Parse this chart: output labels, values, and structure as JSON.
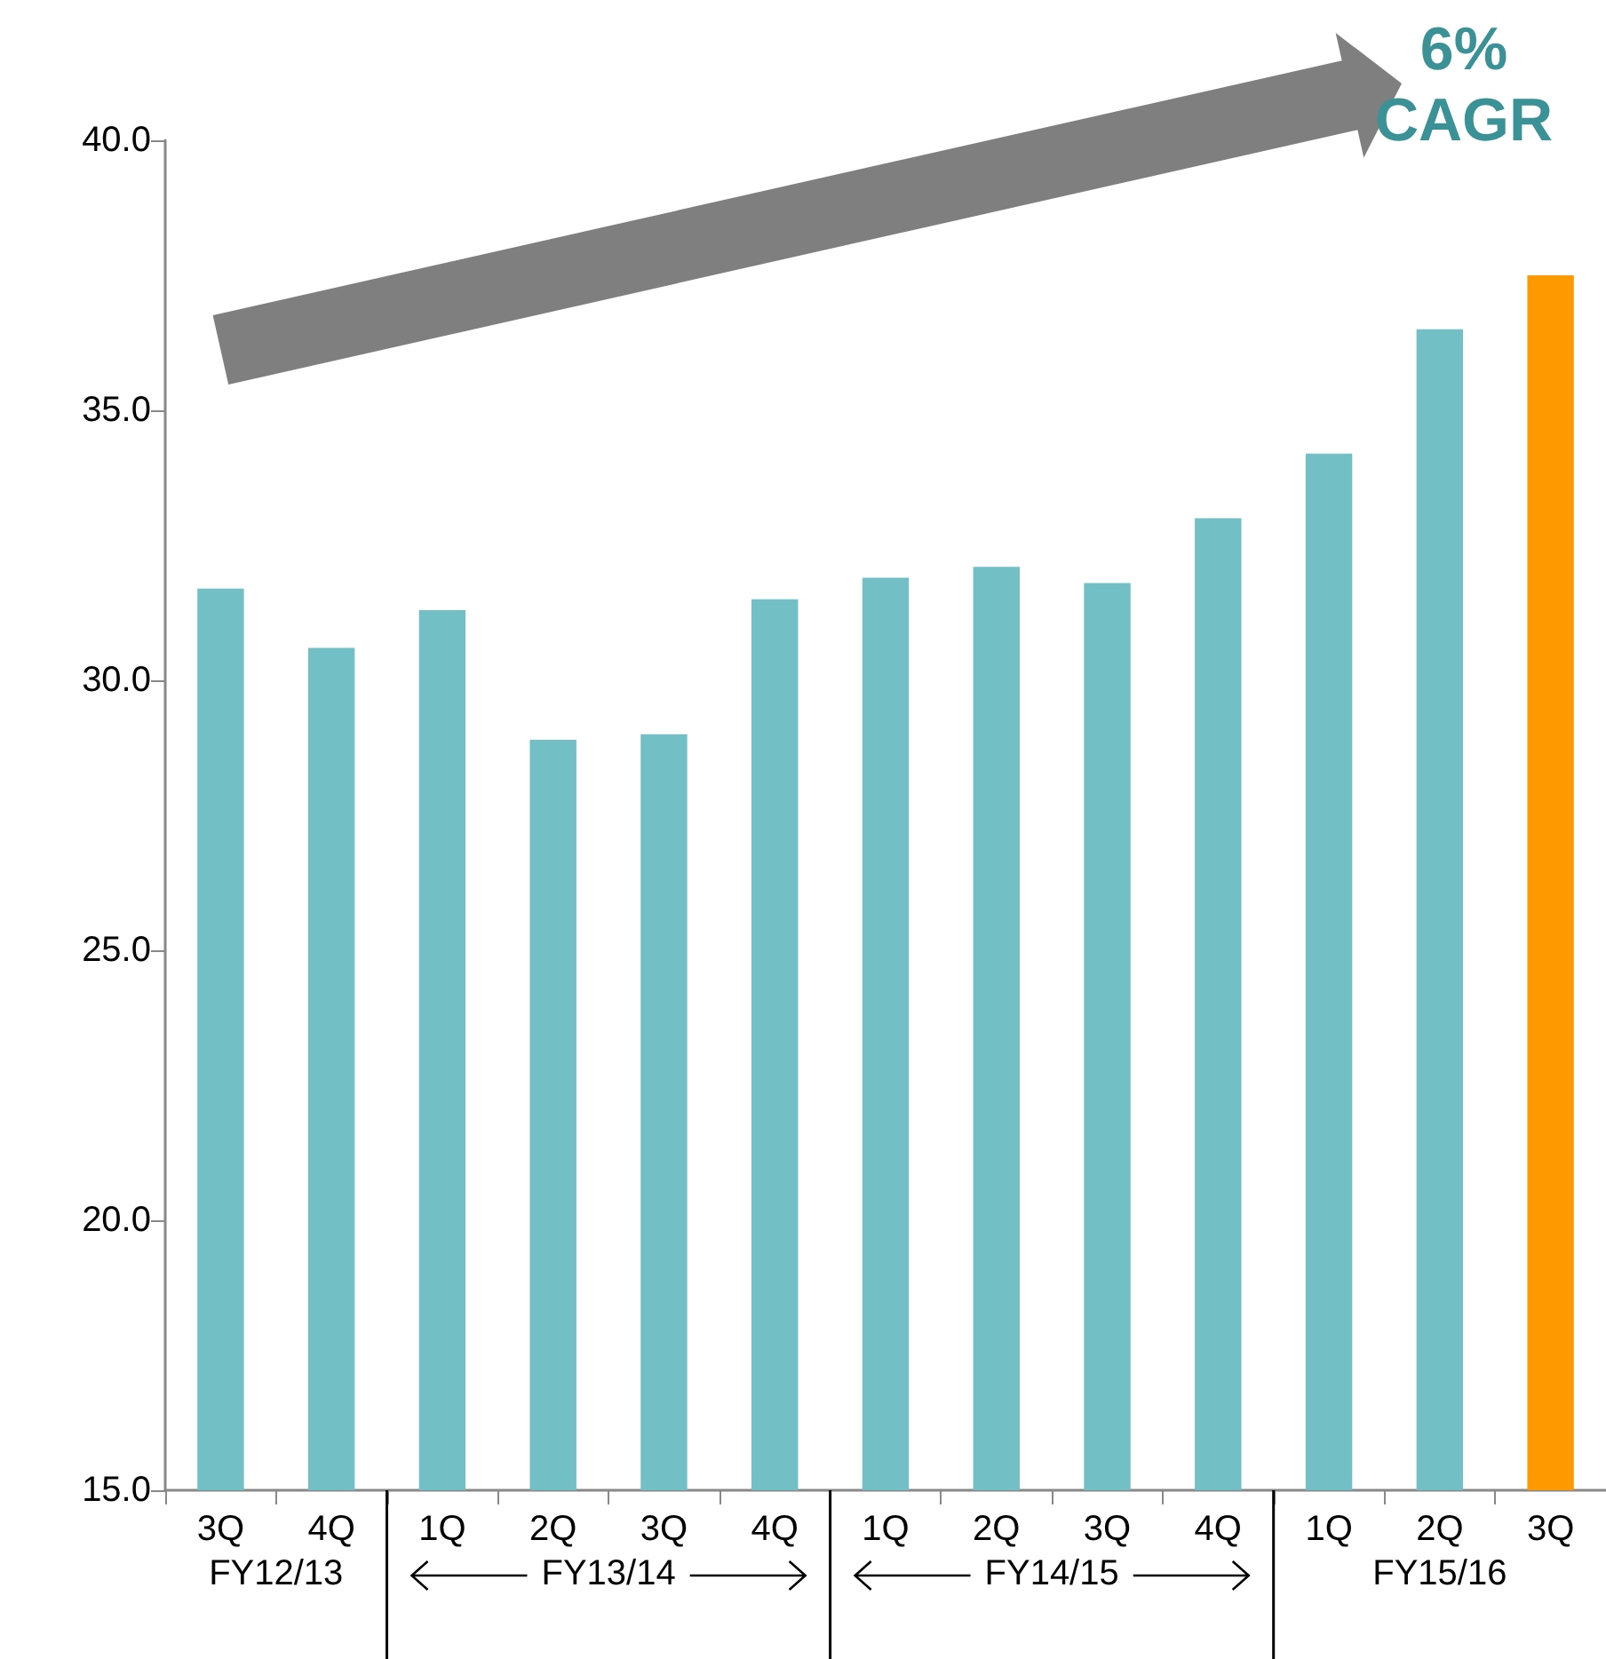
{
  "chart_data": {
    "type": "bar",
    "categories": [
      "3Q",
      "4Q",
      "1Q",
      "2Q",
      "3Q",
      "4Q",
      "1Q",
      "2Q",
      "3Q",
      "4Q",
      "1Q",
      "2Q",
      "3Q"
    ],
    "values": [
      31.7,
      30.6,
      31.3,
      28.9,
      29.0,
      31.5,
      31.9,
      32.1,
      31.8,
      33.0,
      34.2,
      36.5,
      37.5
    ],
    "colors": [
      "#72bfc5",
      "#72bfc5",
      "#72bfc5",
      "#72bfc5",
      "#72bfc5",
      "#72bfc5",
      "#72bfc5",
      "#72bfc5",
      "#72bfc5",
      "#72bfc5",
      "#72bfc5",
      "#72bfc5",
      "#ff9900"
    ],
    "ylim": [
      15,
      40
    ],
    "yticks": [
      {
        "value": 15,
        "label": "15.0"
      },
      {
        "value": 20,
        "label": "20.0"
      },
      {
        "value": 25,
        "label": "25.0"
      },
      {
        "value": 30,
        "label": "30.0"
      },
      {
        "value": 35,
        "label": "35.0"
      },
      {
        "value": 40,
        "label": "40.0"
      }
    ],
    "annotations": [
      "FY12/13",
      "FY13/14",
      "FY14/15",
      "FY15/16",
      "6% CAGR"
    ]
  }
}
